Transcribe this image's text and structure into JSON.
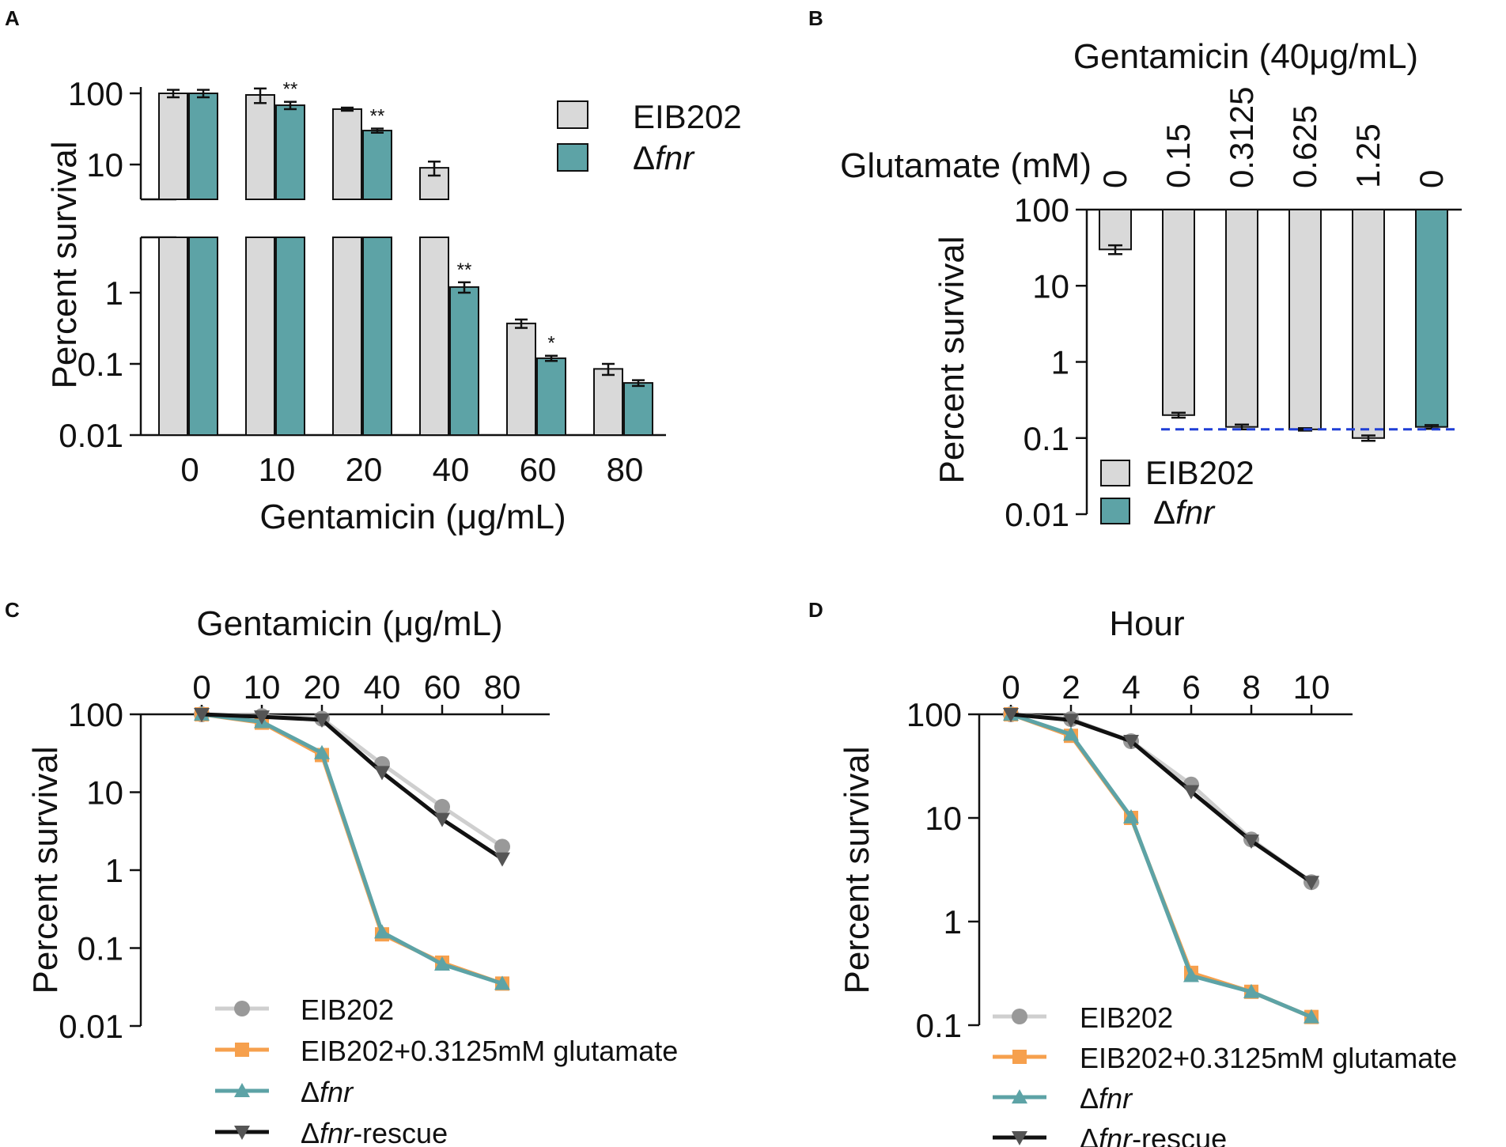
{
  "panels": {
    "A": {
      "label": "A"
    },
    "B": {
      "label": "B"
    },
    "C": {
      "label": "C"
    },
    "D": {
      "label": "D"
    }
  },
  "colors": {
    "eib202": "#d9d9d9",
    "dfnr": "#5da3a6",
    "orange": "#f6a04d",
    "rescue": "#111111",
    "grey_line": "#cfcfcf",
    "grey_marker": "#999999",
    "dashed": "#1f3fd6"
  },
  "chart_data": [
    {
      "panel": "A",
      "type": "bar",
      "title": "",
      "xlabel": "Gentamicin (μg/mL)",
      "ylabel": "Percent survival",
      "scale": "log",
      "broken_axis": true,
      "categories": [
        "0",
        "10",
        "20",
        "40",
        "60",
        "80"
      ],
      "yticks_upper": [
        "100",
        "10"
      ],
      "yticks_lower": [
        "1",
        "0.1",
        "0.01"
      ],
      "series": [
        {
          "name": "EIB202",
          "values": [
            100,
            95,
            60,
            9,
            0.37,
            0.085
          ],
          "errors": [
            12,
            22,
            3,
            2,
            0.05,
            0.015
          ]
        },
        {
          "name": "Δfnr",
          "values": [
            100,
            68,
            30,
            1.2,
            0.12,
            0.054
          ],
          "errors": [
            12,
            8,
            2,
            0.2,
            0.01,
            0.005
          ]
        }
      ],
      "significance": [
        {
          "category": "10",
          "series": "Δfnr",
          "mark": "**"
        },
        {
          "category": "20",
          "series": "Δfnr",
          "mark": "**"
        },
        {
          "category": "40",
          "series": "Δfnr",
          "mark": "**"
        },
        {
          "category": "60",
          "series": "Δfnr",
          "mark": "*"
        }
      ],
      "legend": [
        "EIB202",
        "Δfnr"
      ],
      "legend_position": "top-right"
    },
    {
      "panel": "B",
      "type": "bar",
      "title": "Gentamicin (40μg/mL)",
      "row_label": "Glutamate (mM)",
      "ylabel": "Percent survival",
      "scale": "log",
      "ylim": [
        0.01,
        100
      ],
      "yticks": [
        "100",
        "10",
        "1",
        "0.1",
        "0.01"
      ],
      "categories": [
        "0",
        "0.15",
        "0.3125",
        "0.625",
        "1.25",
        "0"
      ],
      "strains": [
        "EIB202",
        "EIB202",
        "EIB202",
        "EIB202",
        "EIB202",
        "Δfnr"
      ],
      "values": [
        30,
        0.2,
        0.14,
        0.13,
        0.1,
        0.14
      ],
      "errors": [
        4,
        0.015,
        0.01,
        0.005,
        0.008,
        0.008
      ],
      "reference_line": 0.13,
      "legend": [
        "EIB202",
        "Δfnr"
      ],
      "legend_position": "bottom-left"
    },
    {
      "panel": "C",
      "type": "line",
      "title": "Gentamicin (μg/mL)",
      "ylabel": "Percent survival",
      "scale": "log",
      "ylim": [
        0.01,
        100
      ],
      "xticks": [
        "0",
        "10",
        "20",
        "40",
        "60",
        "80"
      ],
      "yticks": [
        "100",
        "10",
        "1",
        "0.1",
        "0.01"
      ],
      "series": [
        {
          "name": "EIB202",
          "values": [
            100,
            95,
            88,
            23,
            6.5,
            2.0
          ]
        },
        {
          "name": "EIB202+0.3125mM glutamate",
          "values": [
            100,
            78,
            30,
            0.15,
            0.065,
            0.035
          ]
        },
        {
          "name": "Δfnr",
          "values": [
            100,
            80,
            32,
            0.16,
            0.062,
            0.035
          ]
        },
        {
          "name": "Δfnr-rescue",
          "values": [
            100,
            93,
            85,
            18,
            4.5,
            1.4
          ]
        }
      ],
      "legend_position": "bottom"
    },
    {
      "panel": "D",
      "type": "line",
      "title": "Hour",
      "ylabel": "Percent survival",
      "scale": "log",
      "ylim": [
        0.1,
        100
      ],
      "xticks": [
        "0",
        "2",
        "4",
        "6",
        "8",
        "10"
      ],
      "yticks": [
        "100",
        "10",
        "1",
        "0.1"
      ],
      "series": [
        {
          "name": "EIB202",
          "values": [
            100,
            90,
            55,
            21,
            6.2,
            2.4
          ]
        },
        {
          "name": "EIB202+0.3125mM glutamate",
          "values": [
            100,
            62,
            10,
            0.32,
            0.21,
            0.12
          ]
        },
        {
          "name": "Δfnr",
          "values": [
            100,
            64,
            10.2,
            0.3,
            0.21,
            0.12
          ]
        },
        {
          "name": "Δfnr-rescue",
          "values": [
            100,
            88,
            55,
            18,
            6.0,
            2.4
          ]
        }
      ],
      "legend_position": "bottom"
    }
  ]
}
